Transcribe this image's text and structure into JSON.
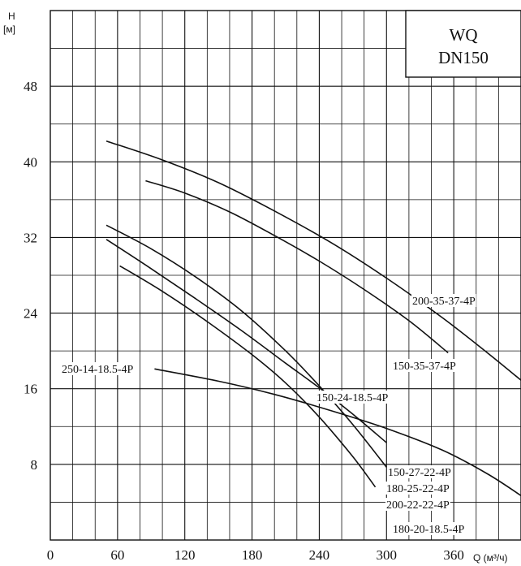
{
  "chart_data": {
    "type": "line",
    "title_lines": [
      "WQ",
      "DN150"
    ],
    "ylabel_lines": [
      "H",
      "[м]"
    ],
    "xlabel": "Q (м³/ч)",
    "xlim": [
      0,
      420
    ],
    "ylim": [
      0,
      56
    ],
    "x_ticks": [
      "0",
      "60",
      "120",
      "180",
      "240",
      "300",
      "360"
    ],
    "x_tick_values": [
      0,
      60,
      120,
      180,
      240,
      300,
      360
    ],
    "y_ticks": [
      "8",
      "16",
      "24",
      "32",
      "40",
      "48"
    ],
    "y_tick_values": [
      8,
      16,
      24,
      32,
      40,
      48
    ],
    "grid": true,
    "series": [
      {
        "name": "200-35-37-4P",
        "x": [
          50,
          100,
          150,
          200,
          250,
          300,
          350,
          390,
          420
        ],
        "y": [
          42.2,
          40.2,
          37.8,
          34.8,
          31.5,
          27.7,
          23.5,
          19.8,
          16.9
        ]
      },
      {
        "name": "150-35-37-4P",
        "x": [
          85,
          120,
          160,
          200,
          240,
          280,
          320,
          355
        ],
        "y": [
          38,
          36.7,
          34.7,
          32.2,
          29.5,
          26.5,
          23.2,
          19.8
        ]
      },
      {
        "name": "150-24-18.5-4P",
        "x": [
          50,
          90,
          130,
          170,
          210,
          240,
          270,
          300
        ],
        "y": [
          33.3,
          30.8,
          27.8,
          24.3,
          20,
          16.3,
          12.2,
          7.7
        ]
      },
      {
        "name": "150-27-22-4P",
        "x": [
          50,
          90,
          130,
          170,
          210,
          240,
          270,
          300
        ],
        "y": [
          31.8,
          28.7,
          25.5,
          22.2,
          18.7,
          16.1,
          13.3,
          10.3
        ]
      },
      {
        "name": "180-25-22-4P",
        "x": [
          62,
          100,
          140,
          180,
          210,
          240,
          270,
          290
        ],
        "y": [
          29,
          26.3,
          23.1,
          19.6,
          16.6,
          13,
          8.8,
          5.6
        ]
      },
      {
        "name": "250-14-18.5-4P",
        "x": [
          93,
          150,
          200,
          250,
          300,
          350,
          390,
          420
        ],
        "y": [
          18.1,
          16.8,
          15.4,
          13.7,
          11.8,
          9.5,
          7,
          4.7
        ]
      },
      {
        "name": "200-22-22-4P",
        "x": [],
        "y": []
      },
      {
        "name": "180-20-18.5-4P",
        "x": [],
        "y": []
      }
    ],
    "line_color": "#111111"
  }
}
